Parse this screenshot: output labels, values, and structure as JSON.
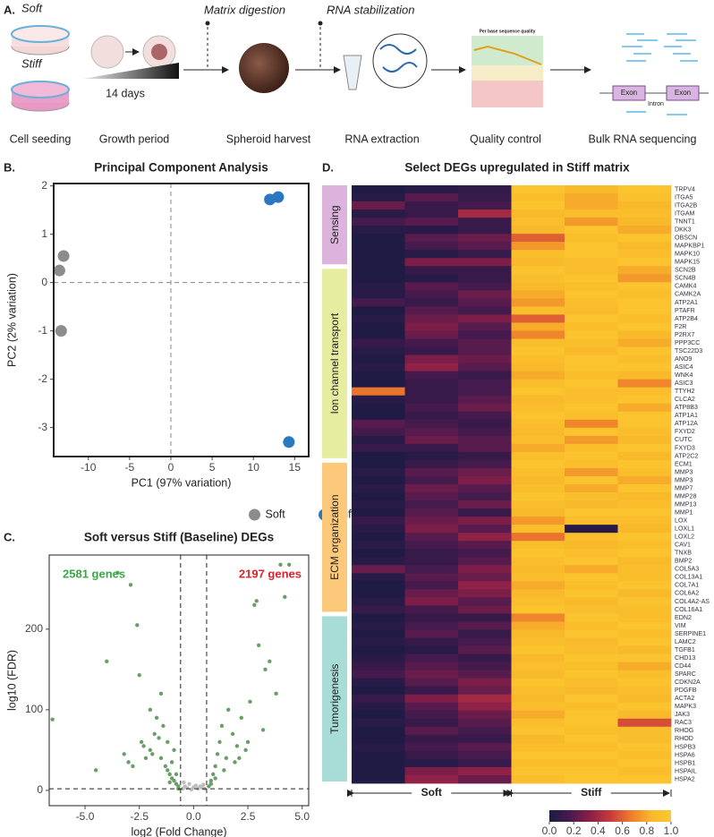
{
  "workflow": {
    "panel": "A.",
    "soft": "Soft",
    "stiff": "Stiff",
    "matrix": "Matrix digestion",
    "rna_stab": "RNA stabilization",
    "days": "14 days",
    "qc_title": "Per base sequence quality",
    "exon1": "Exon",
    "intron": "Intron",
    "exon2": "Exon",
    "steps": [
      "Cell seeding",
      "Growth period",
      "Spheroid harvest",
      "RNA extraction",
      "Quality control",
      "Bulk RNA sequencing"
    ]
  },
  "chart_data": [
    {
      "panel": "B.",
      "type": "scatter",
      "title": "Principal Component Analysis",
      "xlabel": "PC1 (97% variation)",
      "ylabel": "PC2 (2% variation)",
      "xlim": [
        -14.2,
        16.7
      ],
      "ylim": [
        -3.6,
        2.05
      ],
      "xticks": [
        -10,
        -5,
        0,
        5,
        10,
        15
      ],
      "yticks": [
        2,
        1,
        0,
        -1,
        -2,
        -3
      ],
      "zero_lines": true,
      "legend": "bottom",
      "series": [
        {
          "name": "Soft",
          "color": "#8c8c8c",
          "x": [
            -13.5,
            -13.0,
            -13.3
          ],
          "values": [
            0.25,
            0.55,
            -1.0
          ]
        },
        {
          "name": "Stiff",
          "color": "#2a78c0",
          "x": [
            12.0,
            13.0,
            14.3
          ],
          "values": [
            1.72,
            1.77,
            -3.3
          ]
        }
      ]
    },
    {
      "panel": "C.",
      "type": "scatter",
      "title": "Soft versus Stiff (Baseline) DEGs",
      "xlabel": "log2 (Fold Change)",
      "ylabel": "log10 (FDR)",
      "xlim": [
        -6.65,
        5.3
      ],
      "ylim": [
        -19,
        292
      ],
      "xticks": [
        {
          "value": -5,
          "label": "-5.0"
        },
        -2.5,
        {
          "value": 0,
          "label": "0.0"
        },
        2.5,
        {
          "value": 5,
          "label": "5.0"
        }
      ],
      "yticks": [
        0,
        100,
        200
      ],
      "thresholds": {
        "x": [
          -0.6,
          0.6
        ],
        "y": 2
      },
      "annotations": [
        {
          "text": "2581 genes",
          "color": "#3aa845"
        },
        {
          "text": "2197 genes",
          "color": "#e0202a"
        }
      ],
      "series": [
        {
          "color": "#6a9e68",
          "x": [
            -6.5,
            -4.0,
            -3.5,
            -2.9,
            -2.6,
            -2.5,
            -2.3,
            -2.0,
            -1.8,
            -1.6,
            -1.5,
            -1.4,
            -1.3,
            -1.2,
            -1.1,
            -1.0,
            -0.9,
            -0.8,
            -0.7,
            -3.0,
            -2.8,
            -2.2,
            -1.9,
            -1.7,
            -1.2,
            -1.0,
            -0.8,
            -2.4,
            -3.2,
            -4.5,
            -1.5,
            -0.9,
            -2.0,
            -1.1,
            -0.7
          ],
          "values": [
            88,
            160,
            270,
            255,
            205,
            143,
            55,
            50,
            70,
            65,
            40,
            80,
            30,
            25,
            20,
            15,
            12,
            8,
            5,
            35,
            30,
            40,
            45,
            90,
            60,
            35,
            20,
            60,
            45,
            25,
            120,
            50,
            100,
            10,
            2
          ]
        },
        {
          "color": "#6a9e68",
          "x": [
            0.7,
            0.8,
            0.9,
            1.0,
            1.1,
            1.2,
            1.3,
            1.5,
            1.6,
            1.8,
            2.0,
            2.2,
            2.4,
            2.6,
            2.8,
            3.0,
            3.3,
            3.5,
            3.8,
            4.0,
            4.2,
            4.4,
            2.9,
            2.5,
            1.9,
            1.4,
            1.0,
            0.8,
            3.2,
            2.1
          ],
          "values": [
            5,
            12,
            20,
            30,
            45,
            60,
            80,
            40,
            100,
            70,
            55,
            90,
            50,
            110,
            230,
            180,
            150,
            160,
            120,
            280,
            240,
            280,
            235,
            60,
            35,
            25,
            15,
            8,
            75,
            40
          ]
        },
        {
          "color": "#bdbdbd",
          "x": [
            -0.5,
            -0.4,
            -0.3,
            -0.2,
            -0.1,
            0,
            0.1,
            0.2,
            0.3,
            0.4,
            0.5,
            -0.45,
            0.45
          ],
          "values": [
            2,
            5,
            3,
            8,
            1,
            4,
            6,
            2,
            5,
            3,
            2,
            10,
            7
          ]
        }
      ]
    },
    {
      "panel": "D.",
      "type": "heatmap",
      "title": "Select DEGs upregulated in Stiff matrix",
      "rows": [
        "TRPV4",
        "ITGA5",
        "ITGA2B",
        "ITGAM",
        "TNNT1",
        "DKK3",
        "OBSCN",
        "MAPKBP1",
        "MAPK10",
        "MAPK15",
        "SCN2B",
        "SCN4B",
        "CAMK4",
        "CAMK2A",
        "ATP2A1",
        "PTAFR",
        "ATP2B4",
        "F2R",
        "P2RX7",
        "PPP3CC",
        "TSC22D3",
        "ANO9",
        "ASIC4",
        "WNK4",
        "ASIC3",
        "TTYH2",
        "CLCA2",
        "ATP8B3",
        "ATP1A1",
        "ATP12A",
        "FXYD2",
        "CUTC",
        "FXYD3",
        "ATP2C2",
        "ECM1",
        "MMP3",
        "MMP3",
        "MMP7",
        "MMP28",
        "MMP13",
        "MMP1",
        "LOX",
        "LOXL1",
        "LOXL2",
        "CAV1",
        "TNXB",
        "BMP2",
        "COL5A3",
        "COL13A1",
        "COL7A1",
        "COL6A2",
        "COL4A2-AS",
        "COL16A1",
        "EDN2",
        "VIM",
        "SERPINE1",
        "LAMC2",
        "TGFB1",
        "CHD13",
        "CD44",
        "SPARC",
        "CDKN2A",
        "PDGFB",
        "ACTA2",
        "MAPK3",
        "JAK3",
        "RAC3",
        "RHOG",
        "RHOD",
        "HSPB3",
        "HSPA6",
        "HSPB1",
        "HSPAIL",
        "HSPA2"
      ],
      "row_groups": [
        {
          "name": "Sensing",
          "color": "#dcb3dc",
          "count": 10
        },
        {
          "name": "Ion channel transport",
          "color": "#e6eda0",
          "count": 24
        },
        {
          "name": "ECM organization",
          "color": "#fcc97a",
          "count": 19
        },
        {
          "name": "Tumorigenesis",
          "color": "#a8dcd6",
          "count": 21
        }
      ],
      "column_groups": [
        {
          "name": "Soft",
          "count": 3
        },
        {
          "name": "Stiff",
          "count": 3
        }
      ],
      "colorscale": [
        "#1a1b44",
        "#4a1a4e",
        "#8a1f48",
        "#c83a3c",
        "#ee7a2c",
        "#f8b82a",
        "#fcc830"
      ],
      "clim": [
        0,
        1
      ],
      "cticks": [
        {
          "value": 0,
          "label": "0.0"
        },
        0.2,
        0.4,
        0.6,
        0.8,
        {
          "value": 1,
          "label": "1.0"
        }
      ],
      "values": [
        [
          0.02,
          0.05,
          0.08,
          0.95,
          0.85,
          0.95
        ],
        [
          0.05,
          0.2,
          0.1,
          0.9,
          0.8,
          0.92
        ],
        [
          0.25,
          0.1,
          0.15,
          0.95,
          0.8,
          0.85
        ],
        [
          0.05,
          0.1,
          0.4,
          0.85,
          0.9,
          0.9
        ],
        [
          0.15,
          0.2,
          0.1,
          0.9,
          0.75,
          0.85
        ],
        [
          0.05,
          0.05,
          0.1,
          0.85,
          0.95,
          0.8
        ],
        [
          0.02,
          0.2,
          0.25,
          0.6,
          0.9,
          0.95
        ],
        [
          0.02,
          0.15,
          0.2,
          0.75,
          0.95,
          0.85
        ],
        [
          0.02,
          0.05,
          0.1,
          0.9,
          0.95,
          0.9
        ],
        [
          0.02,
          0.3,
          0.3,
          0.85,
          0.9,
          0.95
        ],
        [
          0.02,
          0.1,
          0.1,
          0.95,
          0.9,
          0.8
        ],
        [
          0.02,
          0.05,
          0.1,
          0.9,
          0.95,
          0.75
        ],
        [
          0.05,
          0.2,
          0.15,
          0.85,
          0.9,
          0.95
        ],
        [
          0.05,
          0.15,
          0.25,
          0.8,
          0.95,
          0.9
        ],
        [
          0.15,
          0.1,
          0.2,
          0.75,
          0.9,
          0.95
        ],
        [
          0.02,
          0.2,
          0.15,
          0.9,
          0.85,
          0.95
        ],
        [
          0.05,
          0.25,
          0.3,
          0.6,
          0.95,
          0.9
        ],
        [
          0.02,
          0.3,
          0.2,
          0.8,
          0.9,
          0.95
        ],
        [
          0.02,
          0.25,
          0.15,
          0.7,
          0.95,
          0.85
        ],
        [
          0.1,
          0.15,
          0.2,
          0.9,
          0.9,
          0.8
        ],
        [
          0.05,
          0.1,
          0.2,
          0.95,
          0.85,
          0.95
        ],
        [
          0.02,
          0.3,
          0.25,
          0.9,
          0.95,
          0.9
        ],
        [
          0.05,
          0.35,
          0.2,
          0.85,
          0.95,
          0.95
        ],
        [
          0.02,
          0.15,
          0.1,
          0.8,
          0.9,
          0.85
        ],
        [
          0.02,
          0.1,
          0.15,
          0.9,
          0.95,
          0.7
        ],
        [
          0.65,
          0.1,
          0.15,
          0.95,
          0.9,
          0.9
        ],
        [
          0.05,
          0.1,
          0.2,
          0.85,
          0.9,
          0.95
        ],
        [
          0.02,
          0.15,
          0.25,
          0.9,
          0.95,
          0.8
        ],
        [
          0.02,
          0.1,
          0.15,
          0.95,
          0.9,
          0.95
        ],
        [
          0.2,
          0.15,
          0.1,
          0.9,
          0.7,
          0.95
        ],
        [
          0.15,
          0.2,
          0.15,
          0.85,
          0.95,
          0.9
        ],
        [
          0.05,
          0.25,
          0.2,
          0.9,
          0.75,
          0.85
        ],
        [
          0.1,
          0.1,
          0.2,
          0.8,
          0.9,
          0.95
        ],
        [
          0.02,
          0.05,
          0.1,
          0.9,
          0.95,
          0.85
        ],
        [
          0.02,
          0.1,
          0.15,
          0.95,
          0.9,
          0.95
        ],
        [
          0.05,
          0.2,
          0.25,
          0.9,
          0.75,
          0.9
        ],
        [
          0.02,
          0.15,
          0.3,
          0.85,
          0.95,
          0.8
        ],
        [
          0.05,
          0.25,
          0.2,
          0.9,
          0.8,
          0.95
        ],
        [
          0.02,
          0.2,
          0.15,
          0.95,
          0.9,
          0.85
        ],
        [
          0.05,
          0.15,
          0.25,
          0.9,
          0.85,
          0.9
        ],
        [
          0.02,
          0.2,
          0.1,
          0.85,
          0.95,
          0.95
        ],
        [
          0.1,
          0.25,
          0.3,
          0.75,
          0.9,
          0.9
        ],
        [
          0.05,
          0.3,
          0.2,
          0.9,
          0.05,
          0.85
        ],
        [
          0.02,
          0.2,
          0.35,
          0.65,
          0.9,
          0.95
        ],
        [
          0.05,
          0.15,
          0.2,
          0.9,
          0.85,
          0.9
        ],
        [
          0.02,
          0.1,
          0.15,
          0.95,
          0.9,
          0.95
        ],
        [
          0.05,
          0.1,
          0.2,
          0.9,
          0.95,
          0.85
        ],
        [
          0.25,
          0.15,
          0.3,
          0.85,
          0.8,
          0.9
        ],
        [
          0.05,
          0.2,
          0.25,
          0.9,
          0.95,
          0.9
        ],
        [
          0.02,
          0.15,
          0.35,
          0.8,
          0.9,
          0.95
        ],
        [
          0.02,
          0.25,
          0.3,
          0.85,
          0.95,
          0.85
        ],
        [
          0.05,
          0.3,
          0.2,
          0.9,
          0.85,
          0.95
        ],
        [
          0.1,
          0.15,
          0.25,
          0.95,
          0.9,
          0.9
        ],
        [
          0.02,
          0.1,
          0.1,
          0.7,
          0.95,
          0.9
        ],
        [
          0.05,
          0.15,
          0.2,
          0.8,
          0.9,
          0.95
        ],
        [
          0.02,
          0.2,
          0.1,
          0.85,
          0.95,
          0.9
        ],
        [
          0.05,
          0.1,
          0.15,
          0.9,
          0.85,
          0.95
        ],
        [
          0.02,
          0.05,
          0.2,
          0.95,
          0.9,
          0.85
        ],
        [
          0.05,
          0.15,
          0.1,
          0.85,
          0.95,
          0.95
        ],
        [
          0.1,
          0.2,
          0.15,
          0.9,
          0.9,
          0.8
        ],
        [
          0.15,
          0.25,
          0.2,
          0.85,
          0.95,
          0.9
        ],
        [
          0.05,
          0.2,
          0.3,
          0.95,
          0.9,
          0.95
        ],
        [
          0.02,
          0.1,
          0.25,
          0.9,
          0.85,
          0.9
        ],
        [
          0.1,
          0.3,
          0.4,
          0.85,
          0.95,
          0.85
        ],
        [
          0.05,
          0.2,
          0.35,
          0.9,
          0.9,
          0.95
        ],
        [
          0.02,
          0.15,
          0.25,
          0.8,
          0.95,
          0.85
        ],
        [
          0.05,
          0.1,
          0.2,
          0.9,
          0.95,
          0.55
        ],
        [
          0.02,
          0.2,
          0.15,
          0.95,
          0.9,
          0.9
        ],
        [
          0.02,
          0.1,
          0.1,
          0.85,
          0.95,
          0.9
        ],
        [
          0.05,
          0.15,
          0.2,
          0.9,
          0.9,
          0.95
        ],
        [
          0.02,
          0.1,
          0.15,
          0.95,
          0.95,
          0.9
        ],
        [
          0.02,
          0.05,
          0.1,
          0.9,
          0.9,
          0.95
        ],
        [
          0.02,
          0.3,
          0.35,
          0.95,
          0.95,
          0.9
        ],
        [
          0.02,
          0.35,
          0.25,
          0.9,
          0.95,
          0.95
        ]
      ]
    }
  ]
}
